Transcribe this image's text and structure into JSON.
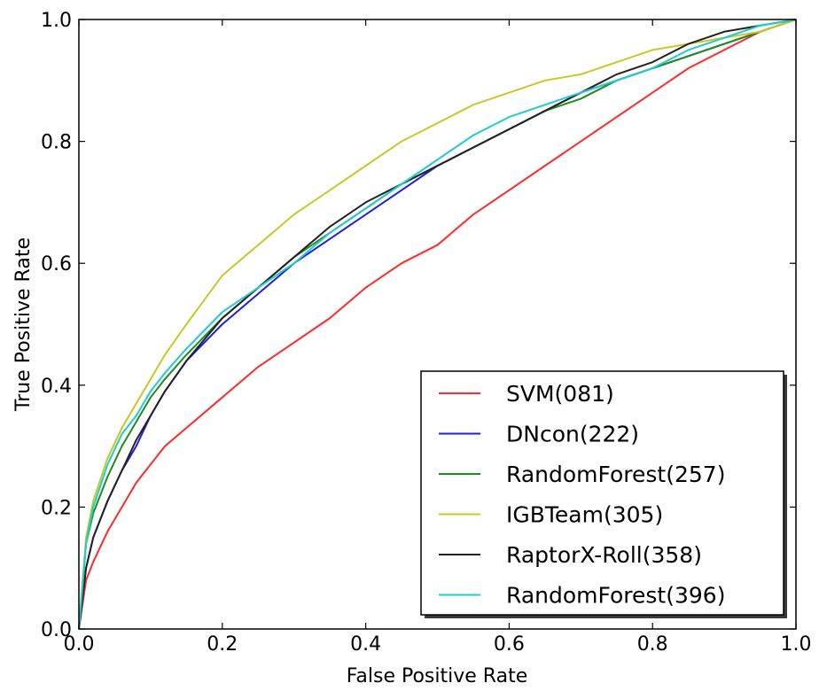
{
  "chart_data": {
    "type": "line",
    "title": "",
    "xlabel": "False Positive Rate",
    "ylabel": "True Positive Rate",
    "xlim": [
      0.0,
      1.0
    ],
    "ylim": [
      0.0,
      1.0
    ],
    "xticks": [
      "0.0",
      "0.2",
      "0.4",
      "0.6",
      "0.8",
      "1.0"
    ],
    "yticks": [
      "0.0",
      "0.2",
      "0.4",
      "0.6",
      "0.8",
      "1.0"
    ],
    "grid": false,
    "legend_position": "lower-right",
    "series": [
      {
        "name": "SVM(081)",
        "color": "#ff2a2a",
        "x": [
          0.0,
          0.01,
          0.02,
          0.04,
          0.06,
          0.08,
          0.1,
          0.12,
          0.15,
          0.2,
          0.25,
          0.3,
          0.35,
          0.4,
          0.45,
          0.5,
          0.55,
          0.6,
          0.65,
          0.7,
          0.75,
          0.8,
          0.85,
          0.9,
          0.95,
          1.0
        ],
        "y": [
          0.0,
          0.08,
          0.11,
          0.16,
          0.2,
          0.24,
          0.27,
          0.3,
          0.33,
          0.38,
          0.43,
          0.47,
          0.51,
          0.56,
          0.6,
          0.63,
          0.68,
          0.72,
          0.76,
          0.8,
          0.84,
          0.88,
          0.92,
          0.95,
          0.98,
          1.0
        ]
      },
      {
        "name": "DNcon(222)",
        "color": "#1f1fe6",
        "x": [
          0.0,
          0.01,
          0.02,
          0.04,
          0.06,
          0.08,
          0.1,
          0.12,
          0.15,
          0.2,
          0.25,
          0.3,
          0.35,
          0.4,
          0.45,
          0.5,
          0.55,
          0.6,
          0.65,
          0.7,
          0.75,
          0.8,
          0.85,
          0.9,
          0.95,
          1.0
        ],
        "y": [
          0.0,
          0.1,
          0.15,
          0.21,
          0.26,
          0.3,
          0.35,
          0.39,
          0.44,
          0.5,
          0.55,
          0.6,
          0.64,
          0.68,
          0.72,
          0.76,
          0.79,
          0.82,
          0.85,
          0.88,
          0.9,
          0.92,
          0.94,
          0.96,
          0.98,
          1.0
        ]
      },
      {
        "name": "RandomForest(257)",
        "color": "#1e8c1e",
        "x": [
          0.0,
          0.01,
          0.02,
          0.04,
          0.06,
          0.08,
          0.1,
          0.12,
          0.15,
          0.2,
          0.25,
          0.3,
          0.35,
          0.4,
          0.45,
          0.5,
          0.55,
          0.6,
          0.65,
          0.7,
          0.75,
          0.8,
          0.85,
          0.9,
          0.95,
          1.0
        ],
        "y": [
          0.0,
          0.14,
          0.19,
          0.25,
          0.3,
          0.34,
          0.38,
          0.41,
          0.45,
          0.51,
          0.56,
          0.61,
          0.65,
          0.69,
          0.73,
          0.76,
          0.79,
          0.82,
          0.85,
          0.87,
          0.9,
          0.92,
          0.94,
          0.96,
          0.98,
          1.0
        ]
      },
      {
        "name": "IGBTeam(305)",
        "color": "#c8c828",
        "x": [
          0.0,
          0.01,
          0.02,
          0.04,
          0.06,
          0.08,
          0.1,
          0.12,
          0.15,
          0.2,
          0.25,
          0.3,
          0.35,
          0.4,
          0.45,
          0.5,
          0.55,
          0.6,
          0.65,
          0.7,
          0.75,
          0.8,
          0.85,
          0.9,
          0.95,
          1.0
        ],
        "y": [
          0.0,
          0.15,
          0.21,
          0.28,
          0.33,
          0.37,
          0.41,
          0.45,
          0.5,
          0.58,
          0.63,
          0.68,
          0.72,
          0.76,
          0.8,
          0.83,
          0.86,
          0.88,
          0.9,
          0.91,
          0.93,
          0.95,
          0.96,
          0.97,
          0.98,
          1.0
        ]
      },
      {
        "name": "RaptorX-Roll(358)",
        "color": "#222222",
        "x": [
          0.0,
          0.01,
          0.02,
          0.04,
          0.06,
          0.08,
          0.1,
          0.12,
          0.15,
          0.2,
          0.25,
          0.3,
          0.35,
          0.4,
          0.45,
          0.5,
          0.55,
          0.6,
          0.65,
          0.7,
          0.75,
          0.8,
          0.85,
          0.9,
          0.95,
          1.0
        ],
        "y": [
          0.0,
          0.1,
          0.15,
          0.21,
          0.26,
          0.31,
          0.35,
          0.39,
          0.44,
          0.51,
          0.56,
          0.61,
          0.66,
          0.7,
          0.73,
          0.76,
          0.79,
          0.82,
          0.85,
          0.88,
          0.91,
          0.93,
          0.96,
          0.98,
          0.99,
          1.0
        ]
      },
      {
        "name": "RandomForest(396)",
        "color": "#20cccc",
        "x": [
          0.0,
          0.01,
          0.02,
          0.04,
          0.06,
          0.08,
          0.1,
          0.12,
          0.15,
          0.2,
          0.25,
          0.3,
          0.35,
          0.4,
          0.45,
          0.5,
          0.55,
          0.6,
          0.65,
          0.7,
          0.75,
          0.8,
          0.85,
          0.9,
          0.95,
          1.0
        ],
        "y": [
          0.0,
          0.14,
          0.2,
          0.27,
          0.32,
          0.35,
          0.39,
          0.42,
          0.46,
          0.52,
          0.56,
          0.6,
          0.65,
          0.69,
          0.73,
          0.77,
          0.81,
          0.84,
          0.86,
          0.88,
          0.9,
          0.92,
          0.95,
          0.97,
          0.99,
          1.0
        ]
      }
    ]
  }
}
